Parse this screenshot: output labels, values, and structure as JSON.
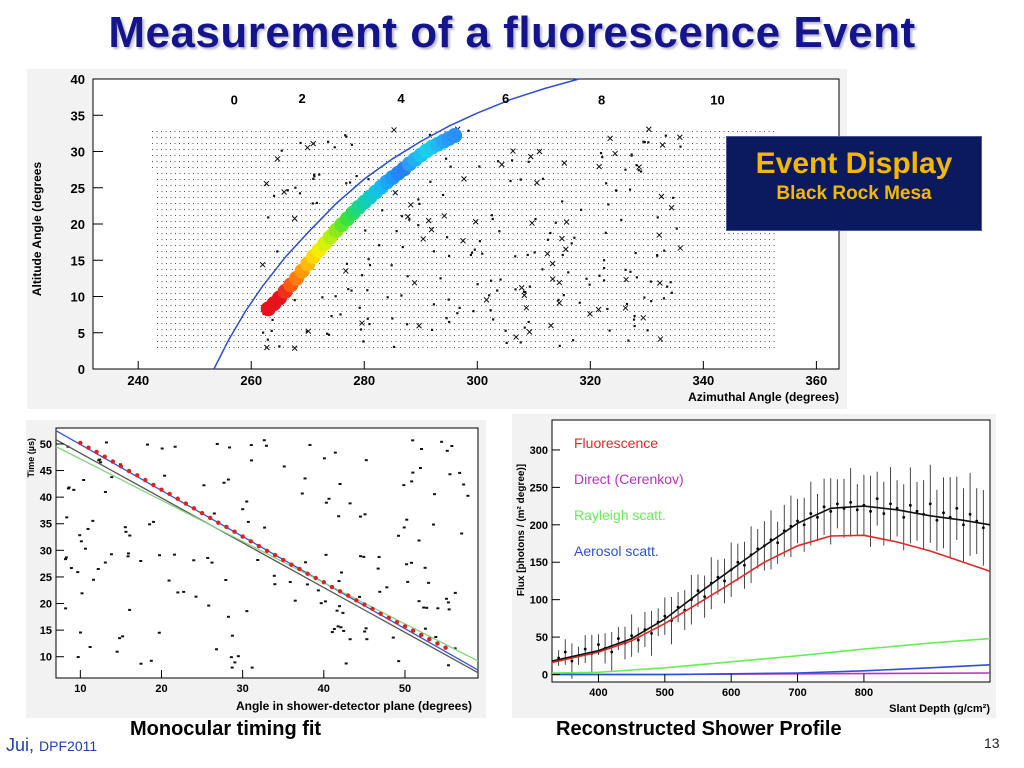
{
  "title": "Measurement of a fluorescence Event",
  "event_box": {
    "title": "Event Display",
    "subtitle": "Black Rock Mesa"
  },
  "captions": {
    "left": "Monocular timing fit",
    "right": "Reconstructed Shower Profile"
  },
  "footer": {
    "author": "Jui,",
    "conference": "DPF2011",
    "page": "13"
  },
  "colors": {
    "title": "#14148c",
    "event_box_bg": "#0b1a5e",
    "event_box_text": "#f5b800",
    "fit_line": "#2a4fd6"
  },
  "chart_data": [
    {
      "type": "scatter",
      "name": "event-display",
      "xlabel": "Azimuthal Angle (degrees)",
      "ylabel": "Altitude Angle (degrees",
      "xlim": [
        232,
        364
      ],
      "ylim": [
        0,
        40
      ],
      "xticks": [
        "240",
        "260",
        "280",
        "300",
        "320",
        "340",
        "360"
      ],
      "yticks": [
        "0",
        "5",
        "10",
        "15",
        "20",
        "25",
        "30",
        "35",
        "40"
      ],
      "time_labels": [
        {
          "label": "0",
          "x": 257,
          "y": 36.5
        },
        {
          "label": "2",
          "x": 269,
          "y": 36.7
        },
        {
          "label": "4",
          "x": 286.5,
          "y": 36.7
        },
        {
          "label": "6",
          "x": 305,
          "y": 36.7
        },
        {
          "label": "8",
          "x": 322,
          "y": 36.5
        },
        {
          "label": "10",
          "x": 342.5,
          "y": 36.5
        }
      ],
      "fit_curve": [
        [
          253.4,
          0
        ],
        [
          256,
          4
        ],
        [
          259,
          8
        ],
        [
          262,
          11.4
        ],
        [
          266,
          15.4
        ],
        [
          270,
          18.8
        ],
        [
          275,
          22.8
        ],
        [
          280,
          26.2
        ],
        [
          285,
          29
        ],
        [
          290,
          31.4
        ],
        [
          295,
          33.5
        ],
        [
          300,
          35.3
        ],
        [
          306,
          37.2
        ],
        [
          312,
          38.7
        ],
        [
          318,
          40
        ]
      ],
      "track": [
        {
          "x": 263,
          "y": 8.3,
          "color": "#e8121a"
        },
        {
          "x": 264,
          "y": 9.0,
          "color": "#e8121a"
        },
        {
          "x": 265,
          "y": 9.8,
          "color": "#e8121a"
        },
        {
          "x": 266,
          "y": 10.7,
          "color": "#f0301a"
        },
        {
          "x": 267,
          "y": 11.6,
          "color": "#ff5a14"
        },
        {
          "x": 268,
          "y": 12.5,
          "color": "#ff7a10"
        },
        {
          "x": 269,
          "y": 13.5,
          "color": "#ff9a0c"
        },
        {
          "x": 270,
          "y": 14.5,
          "color": "#ffbb08"
        },
        {
          "x": 271,
          "y": 15.5,
          "color": "#ffd806"
        },
        {
          "x": 272,
          "y": 16.4,
          "color": "#f2ee06"
        },
        {
          "x": 273,
          "y": 17.3,
          "color": "#d6f20a"
        },
        {
          "x": 274,
          "y": 18.2,
          "color": "#b4f012"
        },
        {
          "x": 275,
          "y": 19.1,
          "color": "#8cea1a"
        },
        {
          "x": 276,
          "y": 19.9,
          "color": "#5fe628"
        },
        {
          "x": 277,
          "y": 20.7,
          "color": "#3ee23c"
        },
        {
          "x": 278,
          "y": 21.5,
          "color": "#28dc60"
        },
        {
          "x": 279,
          "y": 22.3,
          "color": "#1cd68a"
        },
        {
          "x": 280,
          "y": 23.0,
          "color": "#14d0ad"
        },
        {
          "x": 281,
          "y": 23.7,
          "color": "#10ccc8"
        },
        {
          "x": 282,
          "y": 24.4,
          "color": "#12c6de"
        },
        {
          "x": 283,
          "y": 25.1,
          "color": "#16baf0"
        },
        {
          "x": 284,
          "y": 25.8,
          "color": "#1aa8f6"
        },
        {
          "x": 285,
          "y": 26.4,
          "color": "#1e98f8"
        },
        {
          "x": 286,
          "y": 27.0,
          "color": "#2288fa"
        },
        {
          "x": 287,
          "y": 27.6,
          "color": "#2a7efa"
        },
        {
          "x": 288,
          "y": 28.3,
          "color": "#2c9cf8"
        },
        {
          "x": 289,
          "y": 28.9,
          "color": "#20b0f4"
        },
        {
          "x": 290,
          "y": 29.5,
          "color": "#18c4ee"
        },
        {
          "x": 291,
          "y": 30.1,
          "color": "#1ad0e8"
        },
        {
          "x": 292,
          "y": 30.6,
          "color": "#1cc8ec"
        },
        {
          "x": 293,
          "y": 31.0,
          "color": "#1fb8f2"
        },
        {
          "x": 294,
          "y": 31.4,
          "color": "#22a6f6"
        },
        {
          "x": 295,
          "y": 31.8,
          "color": "#2598f8"
        },
        {
          "x": 296,
          "y": 32.2,
          "color": "#2890f8"
        }
      ]
    },
    {
      "type": "scatter",
      "name": "timing-fit",
      "xlabel": "Angle in shower-detector plane (degrees)",
      "ylabel": "Time (µs)",
      "xlim": [
        7,
        59
      ],
      "ylim": [
        6,
        53
      ],
      "xticks": [
        "10",
        "20",
        "30",
        "40",
        "50"
      ],
      "yticks": [
        "10",
        "15",
        "20",
        "25",
        "30",
        "35",
        "40",
        "45",
        "50"
      ],
      "fit_lines": [
        {
          "color": "#3554e0",
          "points": [
            [
              7,
              52.5
            ],
            [
              59,
              7.5
            ]
          ]
        },
        {
          "color": "#555555",
          "points": [
            [
              7,
              50.8
            ],
            [
              59,
              7.0
            ]
          ]
        },
        {
          "color": "#7fd67f",
          "points": [
            [
              7,
              49.5
            ],
            [
              59,
              9.2
            ]
          ]
        }
      ],
      "hits": [
        [
          10,
          50.2
        ],
        [
          11,
          49.3
        ],
        [
          12,
          48.5
        ],
        [
          13,
          47.6
        ],
        [
          14,
          46.7
        ],
        [
          15,
          45.8
        ],
        [
          16,
          44.9
        ],
        [
          17,
          44.1
        ],
        [
          18,
          43.2
        ],
        [
          19,
          42.3
        ],
        [
          20,
          41.4
        ],
        [
          21,
          40.6
        ],
        [
          22,
          39.7
        ],
        [
          23,
          38.8
        ],
        [
          24,
          37.9
        ],
        [
          25,
          37.0
        ],
        [
          26,
          36.1
        ],
        [
          27,
          35.2
        ],
        [
          28,
          34.4
        ],
        [
          29,
          33.5
        ],
        [
          30,
          32.6
        ],
        [
          31,
          31.7
        ],
        [
          32,
          30.8
        ],
        [
          33,
          29.9
        ],
        [
          34,
          29.1
        ],
        [
          35,
          28.2
        ],
        [
          36,
          27.3
        ],
        [
          37,
          26.5
        ],
        [
          38,
          25.6
        ],
        [
          39,
          24.8
        ],
        [
          40,
          24.0
        ],
        [
          41,
          23.1
        ],
        [
          42,
          22.3
        ],
        [
          43,
          21.5
        ],
        [
          44,
          20.6
        ],
        [
          45,
          19.8
        ],
        [
          46,
          19.0
        ],
        [
          47,
          18.1
        ],
        [
          48,
          17.3
        ],
        [
          49,
          16.5
        ],
        [
          50,
          15.7
        ],
        [
          51,
          14.9
        ],
        [
          52,
          14.1
        ],
        [
          53,
          13.3
        ],
        [
          54,
          12.5
        ],
        [
          55,
          11.7
        ]
      ]
    },
    {
      "type": "line",
      "name": "shower-profile",
      "xlabel": "Slant Depth (g/cm²)",
      "ylabel": "Flux [photons / (m² degree)]",
      "xlim": [
        330,
        990
      ],
      "ylim": [
        -10,
        340
      ],
      "xticks": [
        "400",
        "500",
        "600",
        "700",
        "800"
      ],
      "yticks": [
        "0",
        "50",
        "100",
        "150",
        "200",
        "250",
        "300"
      ],
      "series": [
        {
          "name": "Fluorescence",
          "color": "#e02828",
          "x": [
            330,
            400,
            450,
            500,
            550,
            600,
            650,
            700,
            750,
            800,
            850,
            900,
            950,
            990
          ],
          "y": [
            16,
            30,
            45,
            68,
            95,
            122,
            150,
            172,
            185,
            186,
            177,
            165,
            150,
            138
          ]
        },
        {
          "name": "Direct (Cerenkov)",
          "color": "#c030c0",
          "x": [
            330,
            500,
            700,
            990
          ],
          "y": [
            0,
            0,
            1,
            2
          ]
        },
        {
          "name": "Rayleigh scatt.",
          "color": "#66ee55",
          "x": [
            330,
            400,
            500,
            600,
            700,
            800,
            900,
            990
          ],
          "y": [
            2,
            3,
            9,
            17,
            25,
            34,
            42,
            48
          ]
        },
        {
          "name": "Aerosol scatt.",
          "color": "#2f4fd8",
          "x": [
            330,
            500,
            600,
            700,
            800,
            900,
            990
          ],
          "y": [
            0,
            0,
            1,
            2,
            5,
            9,
            13
          ]
        },
        {
          "name": "",
          "color": "#111111",
          "x": [
            330,
            400,
            450,
            500,
            550,
            600,
            650,
            700,
            750,
            800,
            850,
            900,
            950,
            990
          ],
          "y": [
            18,
            32,
            48,
            74,
            108,
            140,
            172,
            202,
            222,
            225,
            220,
            212,
            206,
            200
          ]
        }
      ],
      "data_points": [
        [
          340,
          22
        ],
        [
          350,
          30
        ],
        [
          360,
          18
        ],
        [
          370,
          25
        ],
        [
          380,
          34
        ],
        [
          390,
          28
        ],
        [
          400,
          40
        ],
        [
          410,
          35
        ],
        [
          420,
          30
        ],
        [
          430,
          48
        ],
        [
          440,
          42
        ],
        [
          450,
          52
        ],
        [
          460,
          46
        ],
        [
          470,
          60
        ],
        [
          480,
          55
        ],
        [
          490,
          70
        ],
        [
          500,
          78
        ],
        [
          510,
          72
        ],
        [
          520,
          90
        ],
        [
          530,
          86
        ],
        [
          540,
          100
        ],
        [
          550,
          112
        ],
        [
          560,
          104
        ],
        [
          570,
          122
        ],
        [
          580,
          130
        ],
        [
          590,
          125
        ],
        [
          600,
          140
        ],
        [
          610,
          150
        ],
        [
          620,
          146
        ],
        [
          630,
          160
        ],
        [
          640,
          168
        ],
        [
          650,
          172
        ],
        [
          660,
          180
        ],
        [
          670,
          176
        ],
        [
          680,
          192
        ],
        [
          690,
          198
        ],
        [
          700,
          205
        ],
        [
          710,
          200
        ],
        [
          720,
          215
        ],
        [
          730,
          210
        ],
        [
          740,
          224
        ],
        [
          750,
          218
        ],
        [
          760,
          228
        ],
        [
          770,
          222
        ],
        [
          780,
          230
        ],
        [
          790,
          220
        ],
        [
          800,
          226
        ],
        [
          810,
          218
        ],
        [
          820,
          235
        ],
        [
          830,
          215
        ],
        [
          840,
          228
        ],
        [
          850,
          222
        ],
        [
          860,
          210
        ],
        [
          870,
          226
        ],
        [
          880,
          218
        ],
        [
          890,
          214
        ],
        [
          900,
          228
        ],
        [
          910,
          206
        ],
        [
          920,
          216
        ],
        [
          930,
          210
        ],
        [
          940,
          222
        ],
        [
          950,
          200
        ],
        [
          960,
          214
        ],
        [
          970,
          205
        ],
        [
          980,
          196
        ]
      ]
    }
  ]
}
